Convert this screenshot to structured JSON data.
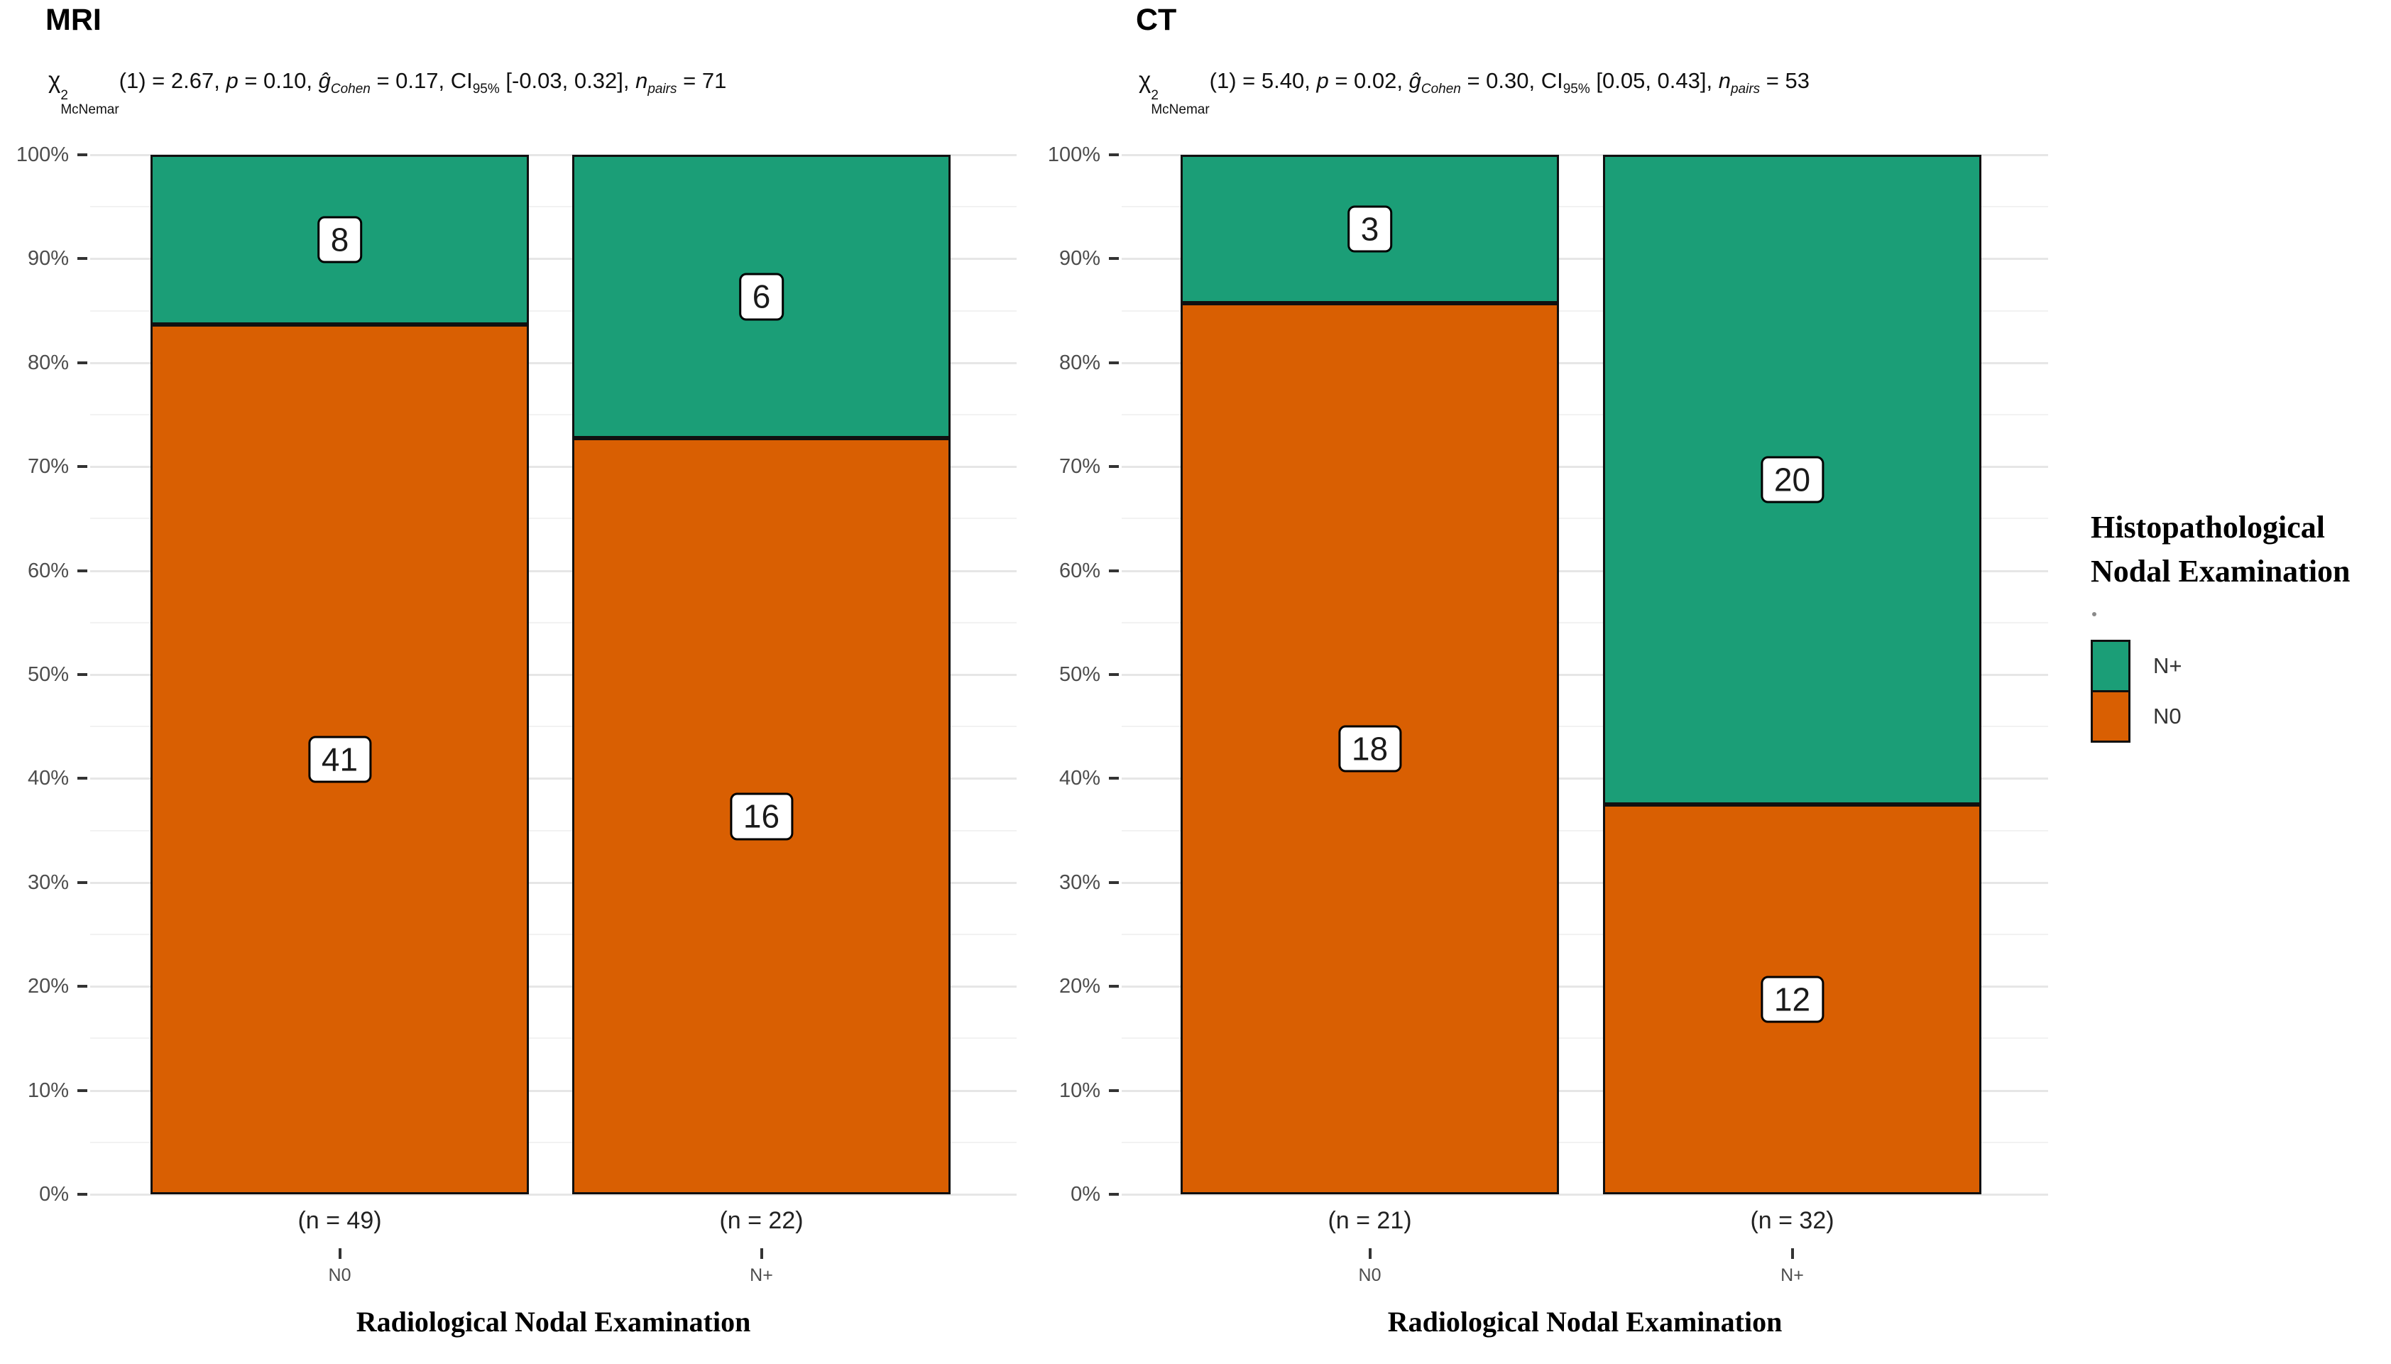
{
  "page": {
    "background": "#ffffff"
  },
  "colors": {
    "n_plus_green": "#1B9E77",
    "n0_orange": "#D95F02",
    "bar_border": "#101010",
    "grid_major": "#e6e6e6",
    "grid_minor": "#f2f2f2",
    "tick": "#333333",
    "tick_label": "#4d4d4d"
  },
  "y_axis": {
    "tick_labels": [
      "100%",
      "90%",
      "80%",
      "70%",
      "60%",
      "50%",
      "40%",
      "30%",
      "20%",
      "10%",
      "0%"
    ]
  },
  "legend": {
    "title_lines": [
      "Histopathological",
      "Nodal Examination"
    ],
    "entries": [
      {
        "label": "N+",
        "color": "#1B9E77"
      },
      {
        "label": "N0",
        "color": "#D95F02"
      }
    ]
  },
  "chart_data": [
    {
      "type": "bar",
      "stacked": true,
      "percent_scale": true,
      "title": "MRI",
      "subtitle_plain": "χ²McNemar(1) = 2.67, p = 0.10, ĝCohen = 0.17, CI95% [-0.03, 0.32], npairs = 71",
      "subtitle_tokens": [
        {
          "text": "χ",
          "stack": {
            "sup": "2",
            "sub": "McNemar"
          }
        },
        {
          "text": "(1) = 2.67, "
        },
        {
          "text": "p",
          "italic": true
        },
        {
          "text": " = 0.10, "
        },
        {
          "text": "ĝ",
          "italic": true,
          "sub": "Cohen"
        },
        {
          "text": " = 0.17, "
        },
        {
          "text": "CI",
          "sub": "95%"
        },
        {
          "text": " [-0.03, 0.32], "
        },
        {
          "text": "n",
          "italic": true,
          "sub": "pairs"
        },
        {
          "text": " = 71"
        }
      ],
      "categories": [
        "N0",
        "N+"
      ],
      "category_counts": [
        "(n = 49)",
        "(n = 22)"
      ],
      "series": [
        {
          "name": "N+",
          "color": "#1B9E77",
          "values": [
            8,
            6
          ]
        },
        {
          "name": "N0",
          "color": "#D95F02",
          "values": [
            41,
            16
          ]
        }
      ],
      "xlabel": "Radiological Nodal Examination",
      "ylabel": "",
      "ylim_percent": [
        0,
        100
      ],
      "grid": true,
      "legend_position": "right"
    },
    {
      "type": "bar",
      "stacked": true,
      "percent_scale": true,
      "title": "CT",
      "subtitle_plain": "χ²McNemar(1) = 5.40, p = 0.02, ĝCohen = 0.30, CI95% [0.05, 0.43], npairs = 53",
      "subtitle_tokens": [
        {
          "text": "χ",
          "stack": {
            "sup": "2",
            "sub": "McNemar"
          }
        },
        {
          "text": "(1) = 5.40, "
        },
        {
          "text": "p",
          "italic": true
        },
        {
          "text": " = 0.02, "
        },
        {
          "text": "ĝ",
          "italic": true,
          "sub": "Cohen"
        },
        {
          "text": " = 0.30, "
        },
        {
          "text": "CI",
          "sub": "95%"
        },
        {
          "text": " [0.05, 0.43], "
        },
        {
          "text": "n",
          "italic": true,
          "sub": "pairs"
        },
        {
          "text": " = 53"
        }
      ],
      "categories": [
        "N0",
        "N+"
      ],
      "category_counts": [
        "(n = 21)",
        "(n = 32)"
      ],
      "series": [
        {
          "name": "N+",
          "color": "#1B9E77",
          "values": [
            3,
            20
          ]
        },
        {
          "name": "N0",
          "color": "#D95F02",
          "values": [
            18,
            12
          ]
        }
      ],
      "xlabel": "Radiological Nodal Examination",
      "ylabel": "",
      "ylim_percent": [
        0,
        100
      ],
      "grid": true,
      "legend_position": "right"
    }
  ]
}
